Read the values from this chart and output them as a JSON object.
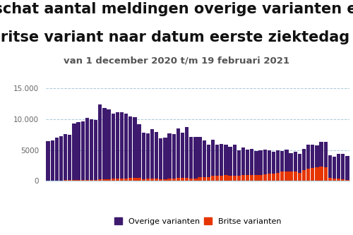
{
  "title_line1": "Geschat aantal meldingen overige varianten en",
  "title_line2": "Britse variant naar datum eerste ziektedag",
  "subtitle": "van 1 december 2020 t/m 19 februari 2021",
  "overige": [
    6400,
    6500,
    7000,
    7200,
    7500,
    7300,
    9200,
    9400,
    9500,
    10000,
    9800,
    9700,
    12100,
    11600,
    11300,
    10600,
    10700,
    10700,
    10500,
    10000,
    9900,
    8800,
    7500,
    7400,
    8000,
    7500,
    6600,
    6700,
    7400,
    7200,
    8100,
    7400,
    8200,
    6700,
    6700,
    6500,
    5900,
    5200,
    5800,
    5000,
    5100,
    4900,
    4700,
    5000,
    4100,
    4400,
    4100,
    4200,
    3800,
    4000,
    4000,
    3800,
    3500,
    3700,
    3400,
    3600,
    3000,
    3200,
    3100,
    3400,
    3900,
    3800,
    3600,
    4000,
    4100,
    3700,
    3500,
    4000,
    4100,
    3800
  ],
  "britse": [
    50,
    60,
    80,
    100,
    120,
    150,
    150,
    180,
    200,
    200,
    200,
    200,
    250,
    280,
    300,
    350,
    400,
    400,
    400,
    450,
    450,
    450,
    300,
    350,
    400,
    400,
    300,
    300,
    350,
    400,
    450,
    450,
    550,
    420,
    420,
    600,
    650,
    650,
    900,
    900,
    900,
    1000,
    800,
    900,
    900,
    1000,
    1000,
    1000,
    1000,
    1000,
    1100,
    1200,
    1200,
    1300,
    1500,
    1500,
    1500,
    1500,
    1300,
    1800,
    2000,
    2100,
    2200,
    2300,
    2200,
    500,
    400,
    350,
    250,
    200
  ],
  "bar_color_overige": "#3d1a6e",
  "bar_color_britse": "#e63500",
  "background_color": "#ffffff",
  "ylim": [
    0,
    16000
  ],
  "yticks": [
    0,
    5000,
    10000,
    15000
  ],
  "ytick_labels": [
    "0",
    "5000",
    "10.000",
    "15.000"
  ],
  "grid_color": "#a8c8d8",
  "legend_label_overige": "Overige varianten",
  "legend_label_britse": "Britse varianten",
  "title_fontsize": 15,
  "subtitle_fontsize": 9.5
}
